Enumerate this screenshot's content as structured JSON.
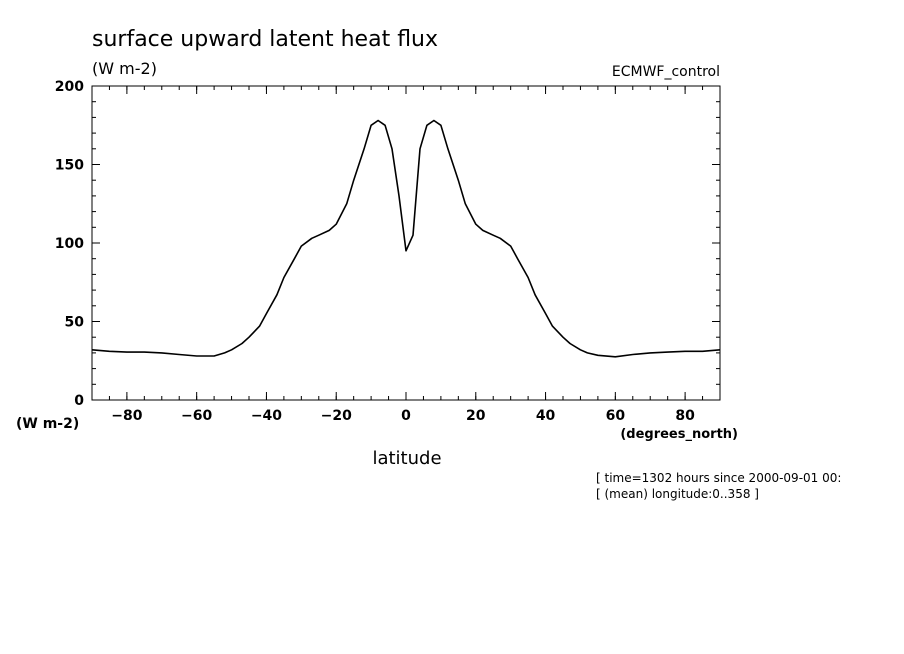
{
  "chart_data": {
    "type": "line",
    "title": "surface upward latent heat flux",
    "units_top": "(W m-2)",
    "dataset_label": "ECMWF_control",
    "ylabel_units": "(W m-2)",
    "xlabel": "latitude",
    "xlabel_units": "(degrees_north)",
    "xlim": [
      -90,
      90
    ],
    "ylim": [
      0,
      200
    ],
    "x_ticks": [
      -80,
      -60,
      -40,
      -20,
      0,
      20,
      40,
      60,
      80
    ],
    "x_tick_labels": [
      "−80",
      "−60",
      "−40",
      "−20",
      "0",
      "20",
      "40",
      "60",
      "80"
    ],
    "y_ticks": [
      0,
      50,
      100,
      150,
      200
    ],
    "y_tick_labels": [
      "0",
      "50",
      "100",
      "150",
      "200"
    ],
    "grid": false,
    "series": [
      {
        "x": [
          -90,
          -85,
          -80,
          -75,
          -70,
          -65,
          -60,
          -55,
          -52,
          -50,
          -47,
          -45,
          -42,
          -40,
          -37,
          -35,
          -32,
          -30,
          -27,
          -25,
          -22,
          -20,
          -17,
          -15,
          -12,
          -10,
          -8,
          -6,
          -4,
          -2,
          0,
          2,
          4,
          6,
          8,
          10,
          12,
          15,
          17,
          20,
          22,
          25,
          27,
          30,
          32,
          35,
          37,
          40,
          42,
          45,
          47,
          50,
          52,
          55,
          60,
          65,
          70,
          75,
          80,
          85,
          90
        ],
        "y": [
          32,
          31,
          30.5,
          30.5,
          30,
          29,
          28,
          28,
          30,
          32,
          36,
          40,
          47,
          55,
          67,
          78,
          90,
          98,
          103,
          105,
          108,
          112,
          125,
          140,
          160,
          175,
          178,
          175,
          160,
          130,
          95,
          105,
          160,
          175,
          178,
          175,
          160,
          140,
          125,
          112,
          108,
          105,
          103,
          98,
          90,
          78,
          67,
          55,
          47,
          40,
          36,
          32,
          30,
          28.5,
          27.5,
          29,
          30,
          30.5,
          31,
          31,
          32
        ]
      }
    ]
  },
  "footer": {
    "line1": "[ time=1302 hours since 2000-09-01 00:",
    "line2": "[ (mean) longitude:0..358 ]"
  }
}
